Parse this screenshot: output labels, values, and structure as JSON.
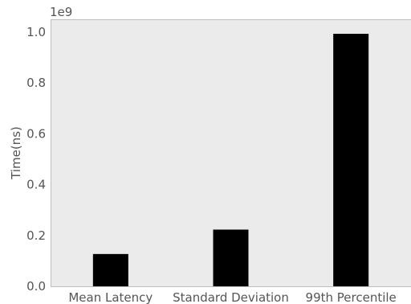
{
  "chart_data": {
    "type": "bar",
    "categories": [
      "Mean Latency",
      "Standard Deviation",
      "99th Percentile"
    ],
    "values": [
      127000000,
      223000000,
      993000000
    ],
    "title": "",
    "xlabel": "",
    "ylabel": "Time(ns)",
    "ylim": [
      0,
      1050000000
    ],
    "yticks": [
      0,
      200000000,
      400000000,
      600000000,
      800000000,
      1000000000
    ],
    "ytick_labels": [
      "0.0",
      "0.2",
      "0.4",
      "0.6",
      "0.8",
      "1.0"
    ],
    "offset_label": "1e9",
    "grid": false,
    "legend": "none",
    "colors": {
      "plot_background": "#ebebeb",
      "bar": "#000000",
      "text": "#555555",
      "axis_line": "#bfbfbf"
    }
  }
}
